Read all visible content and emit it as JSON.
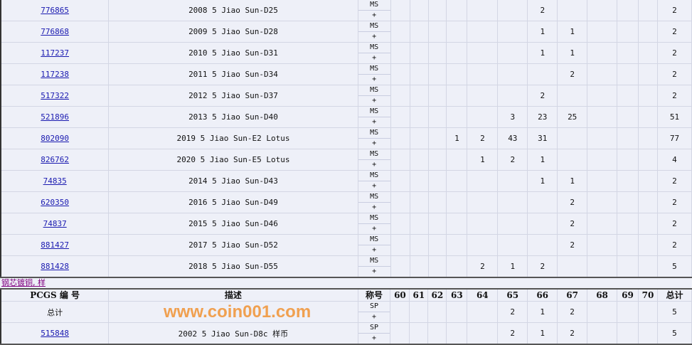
{
  "section1": {
    "rows": [
      {
        "id": "776865",
        "desc": "2008 5 Jiao Sun-D25",
        "grade": [
          "MS",
          "+"
        ],
        "counts": [
          "",
          "",
          "",
          "",
          "",
          "",
          "2",
          "",
          "",
          "",
          ""
        ],
        "total": "2"
      },
      {
        "id": "776868",
        "desc": "2009 5 Jiao Sun-D28",
        "grade": [
          "MS",
          "+"
        ],
        "counts": [
          "",
          "",
          "",
          "",
          "",
          "",
          "1",
          "1",
          "",
          "",
          ""
        ],
        "total": "2"
      },
      {
        "id": "117237",
        "desc": "2010 5 Jiao Sun-D31",
        "grade": [
          "MS",
          "+"
        ],
        "counts": [
          "",
          "",
          "",
          "",
          "",
          "",
          "1",
          "1",
          "",
          "",
          ""
        ],
        "total": "2"
      },
      {
        "id": "117238",
        "desc": "2011 5 Jiao Sun-D34",
        "grade": [
          "MS",
          "+"
        ],
        "counts": [
          "",
          "",
          "",
          "",
          "",
          "",
          "",
          "2",
          "",
          "",
          ""
        ],
        "total": "2"
      },
      {
        "id": "517322",
        "desc": "2012 5 Jiao Sun-D37",
        "grade": [
          "MS",
          "+"
        ],
        "counts": [
          "",
          "",
          "",
          "",
          "",
          "",
          "2",
          "",
          "",
          "",
          ""
        ],
        "total": "2"
      },
      {
        "id": "521896",
        "desc": "2013 5 Jiao Sun-D40",
        "grade": [
          "MS",
          "+"
        ],
        "counts": [
          "",
          "",
          "",
          "",
          "",
          "3",
          "23",
          "25",
          "",
          "",
          ""
        ],
        "total": "51"
      },
      {
        "id": "802090",
        "desc": "2019 5 Jiao Sun-E2 Lotus",
        "grade": [
          "MS",
          "+"
        ],
        "counts": [
          "",
          "",
          "",
          "1",
          "2",
          "43",
          "31",
          "",
          "",
          "",
          ""
        ],
        "total": "77"
      },
      {
        "id": "826762",
        "desc": "2020 5 Jiao Sun-E5 Lotus",
        "grade": [
          "MS",
          "+"
        ],
        "counts": [
          "",
          "",
          "",
          "",
          "1",
          "2",
          "1",
          "",
          "",
          "",
          ""
        ],
        "total": "4"
      },
      {
        "id": "74835",
        "desc": "2014 5 Jiao Sun-D43",
        "grade": [
          "MS",
          "+"
        ],
        "counts": [
          "",
          "",
          "",
          "",
          "",
          "",
          "1",
          "1",
          "",
          "",
          ""
        ],
        "total": "2"
      },
      {
        "id": "620350",
        "desc": "2016 5 Jiao Sun-D49",
        "grade": [
          "MS",
          "+"
        ],
        "counts": [
          "",
          "",
          "",
          "",
          "",
          "",
          "",
          "2",
          "",
          "",
          ""
        ],
        "total": "2"
      },
      {
        "id": "74837",
        "desc": "2015 5 Jiao Sun-D46",
        "grade": [
          "MS",
          "+"
        ],
        "counts": [
          "",
          "",
          "",
          "",
          "",
          "",
          "",
          "2",
          "",
          "",
          ""
        ],
        "total": "2"
      },
      {
        "id": "881427",
        "desc": "2017 5 Jiao Sun-D52",
        "grade": [
          "MS",
          "+"
        ],
        "counts": [
          "",
          "",
          "",
          "",
          "",
          "",
          "",
          "2",
          "",
          "",
          ""
        ],
        "total": "2"
      },
      {
        "id": "881428",
        "desc": "2018 5 Jiao Sun-D55",
        "grade": [
          "MS",
          "+"
        ],
        "counts": [
          "",
          "",
          "",
          "",
          "2",
          "1",
          "2",
          "",
          "",
          "",
          ""
        ],
        "total": "5"
      }
    ]
  },
  "section2": {
    "caption": "钢芯镀铜, 样",
    "headers": [
      "PCGS 编 号",
      "描述",
      "称号",
      "60",
      "61",
      "62",
      "63",
      "64",
      "65",
      "66",
      "67",
      "68",
      "69",
      "70",
      "总计"
    ],
    "total_row": {
      "label": "总计",
      "grade": [
        "SP",
        "+"
      ],
      "counts": [
        "",
        "",
        "",
        "",
        "",
        "2",
        "1",
        "2",
        "",
        "",
        ""
      ],
      "total": "5"
    },
    "rows": [
      {
        "id": "515848",
        "desc": "2002 5 Jiao Sun-D8c 样币",
        "grade": [
          "SP",
          "+"
        ],
        "counts": [
          "",
          "",
          "",
          "",
          "",
          "2",
          "1",
          "2",
          "",
          "",
          ""
        ],
        "total": "5"
      }
    ]
  },
  "watermark": {
    "logo_text": "www.coin001.com"
  }
}
